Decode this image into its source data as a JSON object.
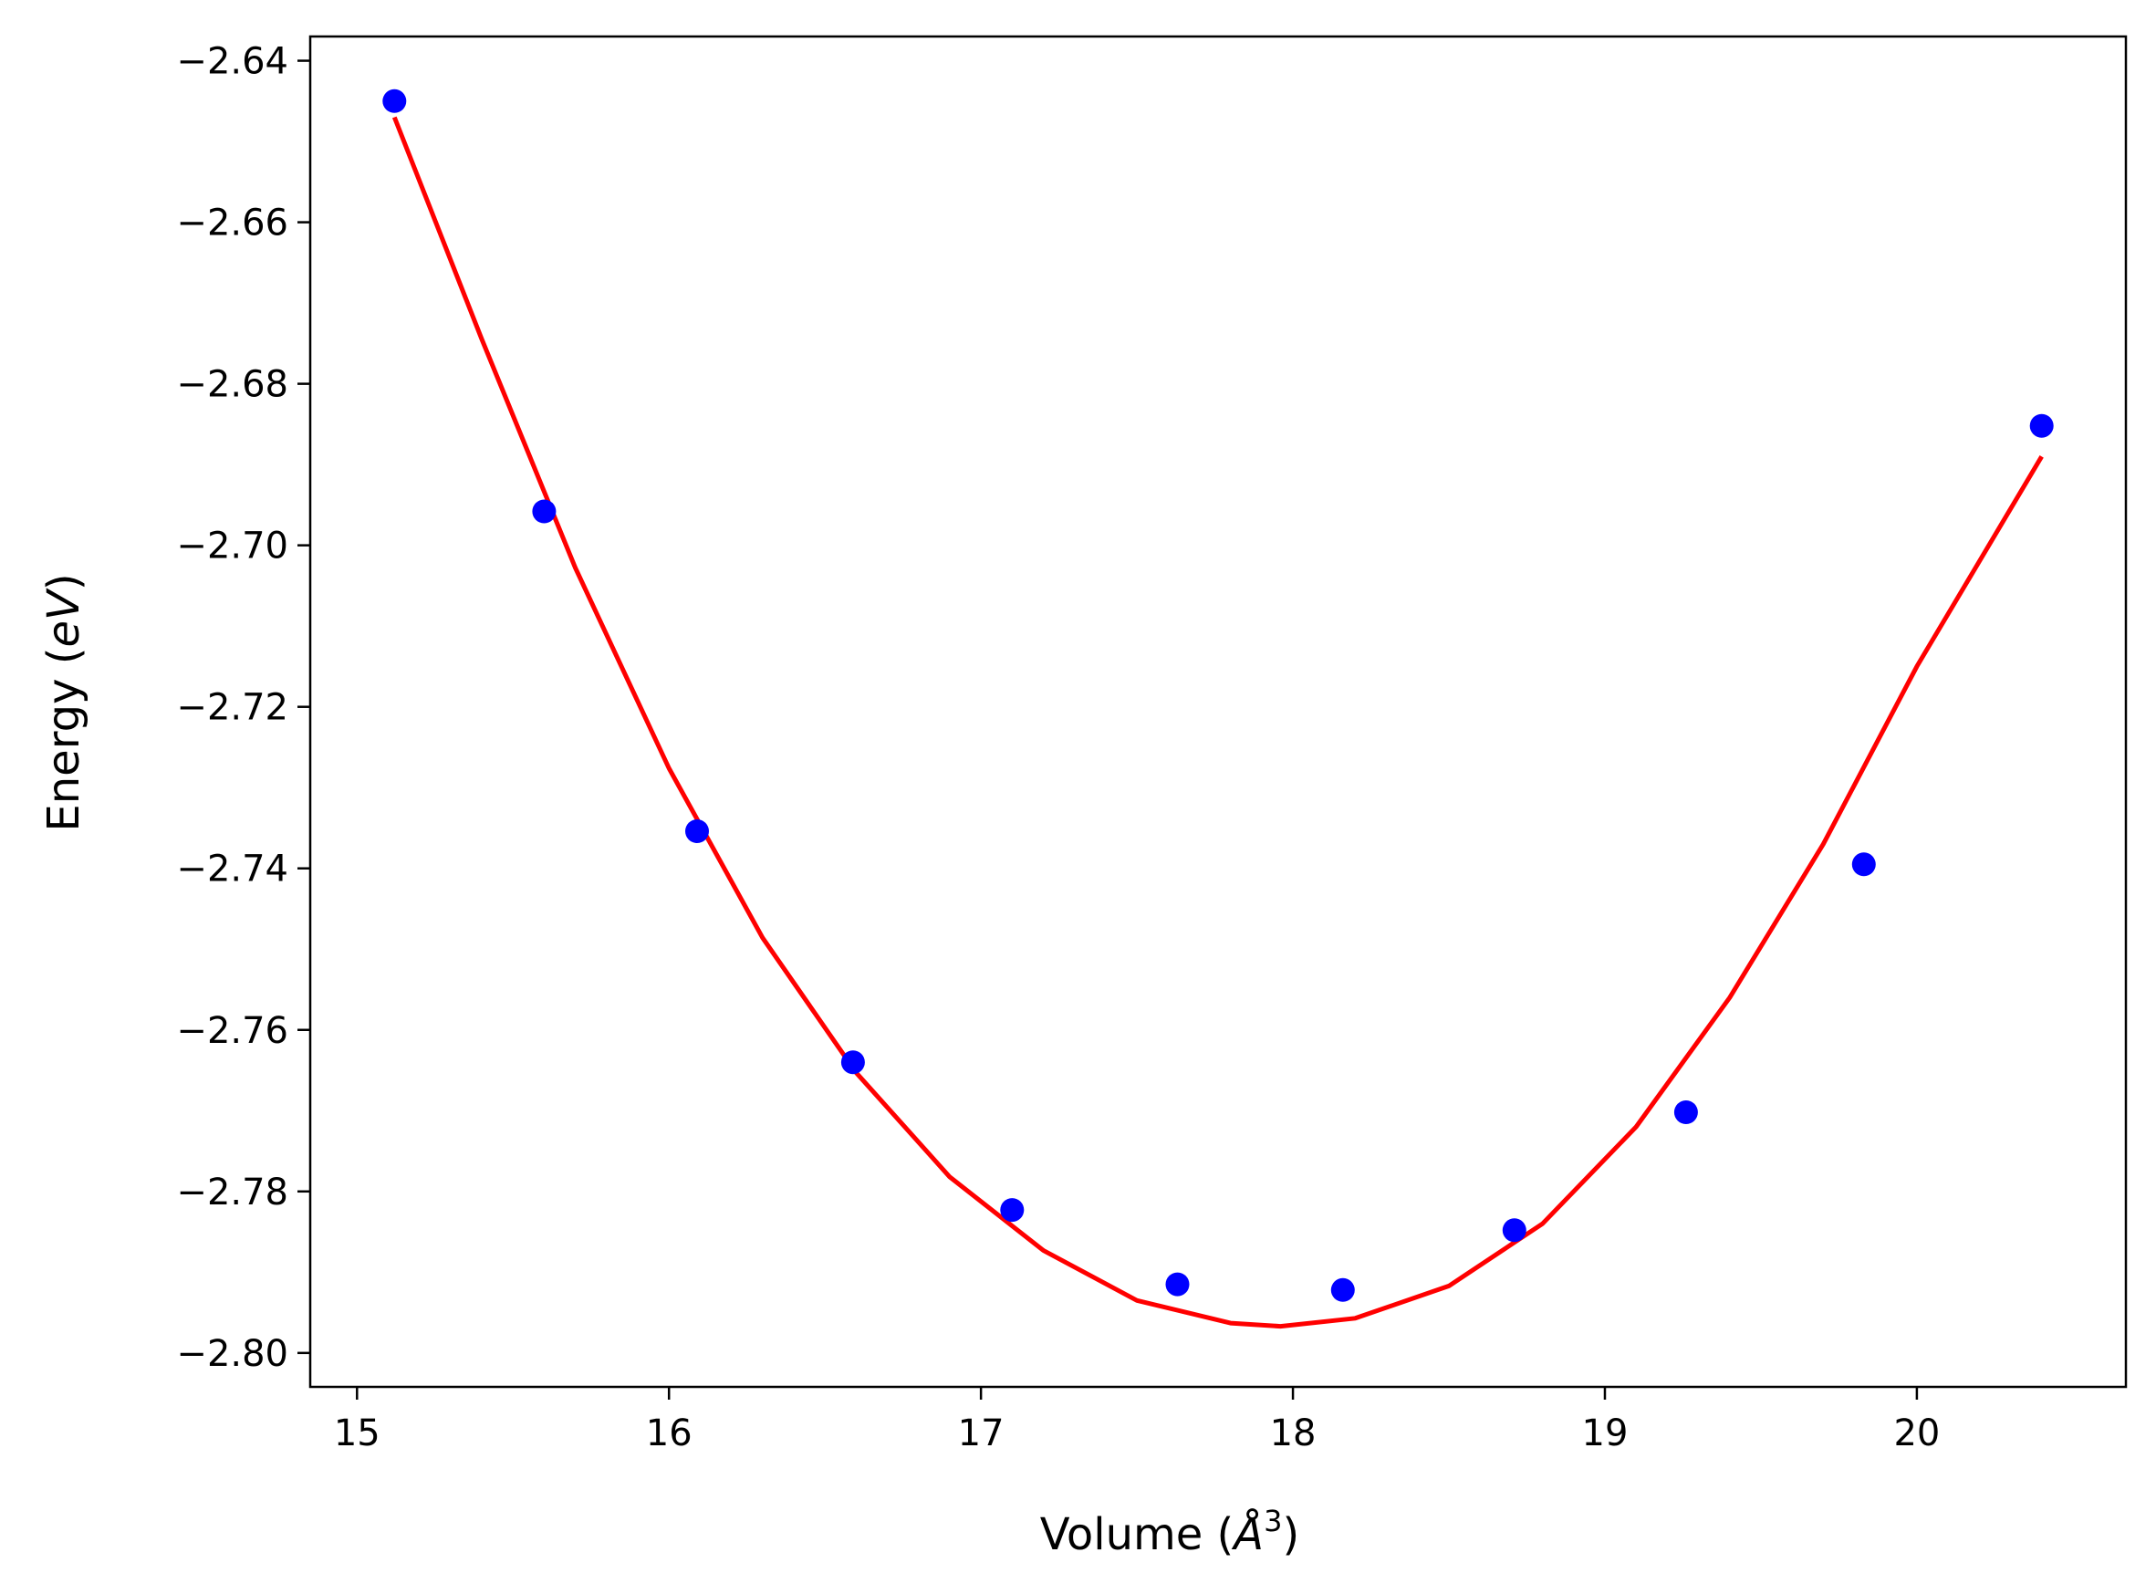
{
  "chart_data": {
    "type": "scatter",
    "title": "",
    "xlabel": "Volume (",
    "xlabel_unit_symbol": "Å",
    "xlabel_unit_power": "3",
    "xlabel_close": ")",
    "ylabel": "Energy (",
    "ylabel_unit": "eV",
    "ylabel_close": ")",
    "xlim": [
      14.85,
      20.67
    ],
    "ylim": [
      -2.8042,
      -2.637
    ],
    "xticks": [
      15,
      16,
      17,
      18,
      19,
      20
    ],
    "xtick_labels": [
      "15",
      "16",
      "17",
      "18",
      "19",
      "20"
    ],
    "yticks": [
      -2.64,
      -2.66,
      -2.68,
      -2.7,
      -2.72,
      -2.74,
      -2.76,
      -2.78,
      -2.8
    ],
    "ytick_labels": [
      "−2.64",
      "−2.66",
      "−2.68",
      "−2.70",
      "−2.72",
      "−2.74",
      "−2.76",
      "−2.78",
      "−2.80"
    ],
    "grid": false,
    "series": [
      {
        "kind": "scatter",
        "color": "#0000ff",
        "x": [
          15.12,
          15.6,
          16.09,
          16.59,
          17.1,
          17.63,
          18.16,
          18.71,
          19.26,
          19.83,
          20.4
        ],
        "y": [
          -2.645,
          -2.6958,
          -2.7354,
          -2.764,
          -2.7823,
          -2.7915,
          -2.7922,
          -2.7848,
          -2.7702,
          -2.7395,
          -2.6852
        ]
      },
      {
        "kind": "line",
        "color": "#ff0000",
        "x": [
          15.12,
          15.4,
          15.7,
          16.0,
          16.3,
          16.6,
          16.9,
          17.2,
          17.5,
          17.8,
          17.96,
          18.2,
          18.5,
          18.8,
          19.1,
          19.4,
          19.7,
          20.0,
          20.2,
          20.4
        ],
        "y": [
          -2.647,
          -2.6745,
          -2.7028,
          -2.7276,
          -2.7486,
          -2.7653,
          -2.7782,
          -2.7873,
          -2.7935,
          -2.7963,
          -2.7967,
          -2.7957,
          -2.7917,
          -2.784,
          -2.772,
          -2.756,
          -2.737,
          -2.715,
          -2.702,
          -2.689
        ]
      }
    ],
    "colors": {
      "axes": "#000000",
      "background": "#ffffff"
    }
  }
}
